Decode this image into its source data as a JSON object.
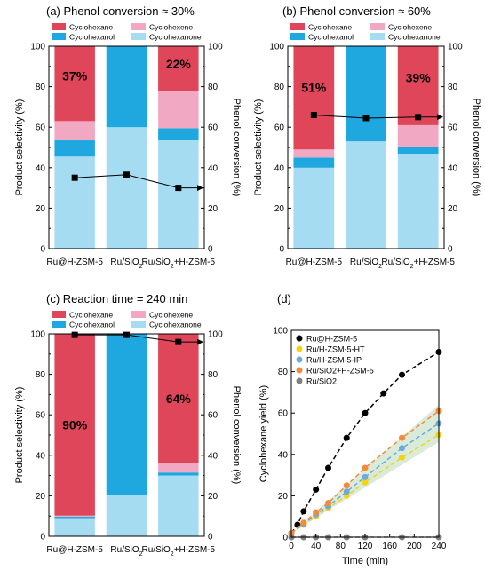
{
  "colors": {
    "cyclohexane": "#e0465a",
    "cyclohexene": "#f0a8c3",
    "cyclohexanol": "#1fa8e0",
    "cyclohexanone": "#a6dcf2",
    "line": "#000000"
  },
  "chart_data": [
    {
      "type": "bar",
      "stacked": true,
      "title": "(a) Phenol conversion ≈ 30%",
      "ylabel": "Product selectivity (%)",
      "y2label": "Phenol conversion (%)",
      "categories": [
        "Ru@H-ZSM-5",
        "Ru/SiO2",
        "Ru/SiO2+H-ZSM-5"
      ],
      "ylim": [
        0,
        100
      ],
      "y2lim": [
        0,
        100
      ],
      "yticks": [
        0,
        20,
        40,
        60,
        80,
        100
      ],
      "legend": [
        "Cyclohexane",
        "Cyclohexene",
        "Cyclohexanol",
        "Cyclohexanone"
      ],
      "series": [
        {
          "name": "Cyclohexanone",
          "color_key": "cyclohexanone",
          "values": [
            45.5,
            60,
            53.5
          ]
        },
        {
          "name": "Cyclohexanol",
          "color_key": "cyclohexanol",
          "values": [
            8,
            40,
            6
          ]
        },
        {
          "name": "Cyclohexene",
          "color_key": "cyclohexene",
          "values": [
            9.5,
            0,
            18.5
          ]
        },
        {
          "name": "Cyclohexane",
          "color_key": "cyclohexane",
          "values": [
            37,
            0,
            22
          ]
        }
      ],
      "labels": [
        "37%",
        "",
        "22%"
      ],
      "conversion": [
        35,
        36.5,
        30
      ]
    },
    {
      "type": "bar",
      "stacked": true,
      "title": "(b) Phenol conversion ≈ 60%",
      "ylabel": "Product selectivity (%)",
      "y2label": "Phenol conversion (%)",
      "categories": [
        "Ru@H-ZSM-5",
        "Ru/SiO2",
        "Ru/SiO2+H-ZSM-5"
      ],
      "ylim": [
        0,
        100
      ],
      "y2lim": [
        0,
        100
      ],
      "yticks": [
        0,
        20,
        40,
        60,
        80,
        100
      ],
      "legend": [
        "Cyclohexane",
        "Cyclohexene",
        "Cyclohexanol",
        "Cyclohexanone"
      ],
      "series": [
        {
          "name": "Cyclohexanone",
          "color_key": "cyclohexanone",
          "values": [
            40,
            53,
            46.5
          ]
        },
        {
          "name": "Cyclohexanol",
          "color_key": "cyclohexanol",
          "values": [
            5,
            47,
            3.5
          ]
        },
        {
          "name": "Cyclohexene",
          "color_key": "cyclohexene",
          "values": [
            4,
            0,
            11
          ]
        },
        {
          "name": "Cyclohexane",
          "color_key": "cyclohexane",
          "values": [
            51,
            0,
            39
          ]
        }
      ],
      "labels": [
        "51%",
        "",
        "39%"
      ],
      "conversion": [
        66,
        64.5,
        65
      ]
    },
    {
      "type": "bar",
      "stacked": true,
      "title": "(c) Reaction time = 240 min",
      "ylabel": "Product selectivity (%)",
      "y2label": "Phenol conversion (%)",
      "categories": [
        "Ru@H-ZSM-5",
        "Ru/SiO2",
        "Ru/SiO2+H-ZSM-5"
      ],
      "ylim": [
        0,
        100
      ],
      "y2lim": [
        0,
        100
      ],
      "yticks": [
        0,
        20,
        40,
        60,
        80,
        100
      ],
      "legend": [
        "Cyclohexane",
        "Cyclohexene",
        "Cyclohexanol",
        "Cyclohexanone"
      ],
      "series": [
        {
          "name": "Cyclohexanone",
          "color_key": "cyclohexanone",
          "values": [
            9,
            20.5,
            30
          ]
        },
        {
          "name": "Cyclohexanol",
          "color_key": "cyclohexanol",
          "values": [
            0.7,
            79.5,
            1.5
          ]
        },
        {
          "name": "Cyclohexene",
          "color_key": "cyclohexene",
          "values": [
            0.5,
            0,
            4.5
          ]
        },
        {
          "name": "Cyclohexane",
          "color_key": "cyclohexane",
          "values": [
            89.8,
            0,
            64
          ]
        }
      ],
      "labels": [
        "90%",
        "",
        "64%"
      ],
      "conversion": [
        99.5,
        99.5,
        96
      ]
    },
    {
      "type": "line",
      "title": "(d)",
      "xlabel": "Time (min)",
      "ylabel": "Cyclohexane yield (%)",
      "xlim": [
        0,
        240
      ],
      "ylim": [
        0,
        100
      ],
      "xticks": [
        0,
        40,
        80,
        120,
        160,
        200,
        240
      ],
      "yticks": [
        0,
        20,
        40,
        60,
        80,
        100
      ],
      "series": [
        {
          "name": "Ru@H-ZSM-5",
          "color": "#000000",
          "x": [
            0,
            10,
            20,
            40,
            60,
            90,
            120,
            150,
            180,
            240
          ],
          "y": [
            2,
            6,
            12.5,
            23,
            33.5,
            48,
            60,
            69.5,
            78.5,
            89.5
          ]
        },
        {
          "name": "Ru/H-ZSM-5-HT",
          "color": "#f7d117",
          "x": [
            0,
            20,
            40,
            60,
            90,
            120,
            180,
            240
          ],
          "y": [
            2,
            6,
            10,
            14,
            20,
            26.5,
            38.5,
            49.5
          ]
        },
        {
          "name": "Ru/H-ZSM-5-IP",
          "color": "#6fa8dc",
          "x": [
            0,
            20,
            40,
            60,
            90,
            120,
            180,
            240
          ],
          "y": [
            2,
            6.5,
            11,
            15,
            22,
            29,
            43,
            55
          ]
        },
        {
          "name": "Ru/SiO2+H-ZSM-5",
          "color": "#f58a3c",
          "x": [
            0,
            20,
            40,
            60,
            90,
            120,
            180,
            240
          ],
          "y": [
            2,
            7,
            12,
            16.5,
            25,
            33.5,
            48,
            61
          ]
        },
        {
          "name": "Ru/SiO2",
          "color": "#808080",
          "x": [
            0,
            20,
            40,
            60,
            90,
            120,
            180,
            240
          ],
          "y": [
            0,
            0,
            0,
            0,
            0,
            0,
            0,
            0
          ]
        }
      ],
      "band": {
        "x": [
          0,
          240
        ],
        "lower": [
          2,
          46
        ],
        "upper": [
          2,
          64
        ]
      }
    }
  ]
}
